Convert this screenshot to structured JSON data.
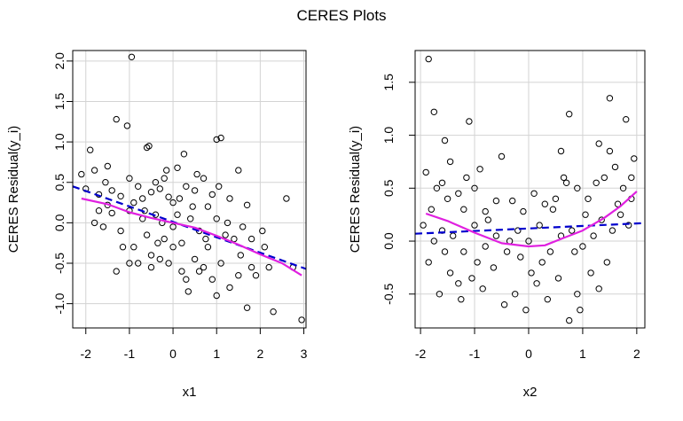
{
  "figure": {
    "title": "CERES Plots"
  },
  "colors": {
    "points": "#000000",
    "grid": "#d3d3d3",
    "linear_fit": "#0000cd",
    "smooth_fit": "#e020e0"
  },
  "chart_data": [
    {
      "type": "scatter",
      "xlabel": "x1",
      "ylabel": "CERES Residual(y_i)",
      "xlim": [
        -2.3,
        3.05
      ],
      "ylim": [
        -1.3,
        2.13
      ],
      "xticks": [
        -2,
        -1,
        0,
        1,
        2,
        3
      ],
      "xtick_labels": [
        "-2",
        "-1",
        "0",
        "1",
        "2",
        "3"
      ],
      "yticks": [
        -1.0,
        -0.5,
        0.0,
        0.5,
        1.0,
        1.5,
        2.0
      ],
      "ytick_labels": [
        "-1.0",
        "-0.5",
        "0.0",
        "0.5",
        "1.0",
        "1.5",
        "2.0"
      ],
      "grid": true,
      "points": [
        [
          -2.1,
          0.6
        ],
        [
          -1.9,
          0.9
        ],
        [
          -1.8,
          0.65
        ],
        [
          -1.5,
          0.7
        ],
        [
          -1.3,
          1.28
        ],
        [
          -1.05,
          1.2
        ],
        [
          -0.95,
          2.05
        ],
        [
          -0.6,
          0.93
        ],
        [
          -0.55,
          0.95
        ],
        [
          0.1,
          0.68
        ],
        [
          0.25,
          0.85
        ],
        [
          1.0,
          1.03
        ],
        [
          1.1,
          1.05
        ],
        [
          1.5,
          0.65
        ],
        [
          2.6,
          0.3
        ],
        [
          -2.0,
          0.42
        ],
        [
          -1.7,
          0.35
        ],
        [
          -1.5,
          0.22
        ],
        [
          -1.4,
          0.4
        ],
        [
          -1.2,
          0.33
        ],
        [
          -1.0,
          0.55
        ],
        [
          -0.8,
          0.45
        ],
        [
          -0.7,
          0.3
        ],
        [
          -0.5,
          0.38
        ],
        [
          -0.4,
          0.5
        ],
        [
          -0.3,
          0.42
        ],
        [
          -0.2,
          0.55
        ],
        [
          -0.1,
          0.32
        ],
        [
          0.0,
          0.25
        ],
        [
          0.3,
          0.45
        ],
        [
          0.5,
          0.4
        ],
        [
          0.7,
          0.55
        ],
        [
          0.8,
          0.2
        ],
        [
          1.3,
          0.3
        ],
        [
          1.7,
          0.22
        ],
        [
          -1.8,
          0.0
        ],
        [
          -1.6,
          -0.05
        ],
        [
          -1.4,
          0.12
        ],
        [
          -1.2,
          -0.1
        ],
        [
          -1.0,
          0.15
        ],
        [
          -0.9,
          -0.3
        ],
        [
          -0.7,
          0.05
        ],
        [
          -0.6,
          -0.15
        ],
        [
          -0.4,
          0.1
        ],
        [
          -0.2,
          -0.2
        ],
        [
          0.0,
          -0.05
        ],
        [
          0.1,
          0.1
        ],
        [
          0.2,
          -0.25
        ],
        [
          0.4,
          0.05
        ],
        [
          0.6,
          -0.1
        ],
        [
          0.8,
          -0.3
        ],
        [
          1.0,
          0.05
        ],
        [
          1.2,
          -0.15
        ],
        [
          1.4,
          -0.2
        ],
        [
          1.6,
          -0.05
        ],
        [
          1.8,
          -0.2
        ],
        [
          2.1,
          -0.3
        ],
        [
          -1.3,
          -0.6
        ],
        [
          -1.0,
          -0.5
        ],
        [
          -0.8,
          -0.5
        ],
        [
          -0.5,
          -0.4
        ],
        [
          -0.3,
          -0.45
        ],
        [
          -0.1,
          -0.5
        ],
        [
          0.2,
          -0.6
        ],
        [
          0.3,
          -0.7
        ],
        [
          0.5,
          -0.45
        ],
        [
          0.7,
          -0.55
        ],
        [
          0.9,
          -0.7
        ],
        [
          1.1,
          -0.5
        ],
        [
          1.3,
          -0.8
        ],
        [
          1.5,
          -0.65
        ],
        [
          1.7,
          -1.05
        ],
        [
          1.8,
          -0.55
        ],
        [
          2.2,
          -0.55
        ],
        [
          2.3,
          -1.1
        ],
        [
          2.75,
          -0.55
        ],
        [
          2.95,
          -1.2
        ],
        [
          0.35,
          -0.85
        ],
        [
          0.6,
          -0.6
        ],
        [
          0.0,
          -0.3
        ],
        [
          -0.5,
          -0.55
        ],
        [
          1.0,
          -0.9
        ],
        [
          1.9,
          -0.65
        ],
        [
          -1.7,
          0.15
        ],
        [
          -0.9,
          0.25
        ],
        [
          0.9,
          0.35
        ],
        [
          1.25,
          0.0
        ],
        [
          0.45,
          0.2
        ],
        [
          -0.25,
          0.0
        ],
        [
          0.15,
          0.3
        ],
        [
          -1.55,
          0.5
        ],
        [
          -0.65,
          0.15
        ],
        [
          0.75,
          -0.2
        ],
        [
          1.55,
          -0.4
        ],
        [
          -0.15,
          0.65
        ],
        [
          0.55,
          0.6
        ],
        [
          -1.15,
          -0.3
        ],
        [
          2.05,
          -0.1
        ],
        [
          -0.35,
          -0.25
        ],
        [
          1.05,
          0.45
        ]
      ],
      "linear_fit": [
        [
          -2.3,
          0.45
        ],
        [
          3.05,
          -0.57
        ]
      ],
      "smooth_fit": [
        [
          -2.1,
          0.3
        ],
        [
          -1.5,
          0.23
        ],
        [
          -1.0,
          0.13
        ],
        [
          -0.5,
          0.06
        ],
        [
          0.0,
          0.0
        ],
        [
          0.5,
          -0.06
        ],
        [
          1.0,
          -0.16
        ],
        [
          1.5,
          -0.27
        ],
        [
          2.0,
          -0.39
        ],
        [
          2.5,
          -0.5
        ],
        [
          2.95,
          -0.65
        ]
      ]
    },
    {
      "type": "scatter",
      "xlabel": "x2",
      "ylabel": "CERES Residual(y_i)",
      "xlim": [
        -2.1,
        2.15
      ],
      "ylim": [
        -0.82,
        1.8
      ],
      "xticks": [
        -2,
        -1,
        0,
        1,
        2
      ],
      "xtick_labels": [
        "-2",
        "-1",
        "0",
        "1",
        "2"
      ],
      "yticks": [
        -0.5,
        0.0,
        0.5,
        1.0,
        1.5
      ],
      "ytick_labels": [
        "-0.5",
        "0.0",
        "0.5",
        "1.0",
        "1.5"
      ],
      "grid": true,
      "points": [
        [
          -1.85,
          1.72
        ],
        [
          -1.75,
          1.22
        ],
        [
          -1.55,
          0.95
        ],
        [
          -1.45,
          0.75
        ],
        [
          -1.1,
          1.13
        ],
        [
          -0.9,
          0.68
        ],
        [
          -0.5,
          0.8
        ],
        [
          0.6,
          0.85
        ],
        [
          0.75,
          1.2
        ],
        [
          1.3,
          0.92
        ],
        [
          1.5,
          1.35
        ],
        [
          1.8,
          1.15
        ],
        [
          1.95,
          0.78
        ],
        [
          -1.9,
          0.65
        ],
        [
          -1.7,
          0.5
        ],
        [
          -1.6,
          0.55
        ],
        [
          -1.5,
          0.4
        ],
        [
          -1.3,
          0.45
        ],
        [
          -1.2,
          0.3
        ],
        [
          -1.0,
          0.5
        ],
        [
          -0.8,
          0.28
        ],
        [
          -0.6,
          0.38
        ],
        [
          -0.3,
          0.38
        ],
        [
          -0.1,
          0.28
        ],
        [
          0.1,
          0.45
        ],
        [
          0.3,
          0.35
        ],
        [
          0.5,
          0.4
        ],
        [
          0.7,
          0.55
        ],
        [
          0.9,
          0.5
        ],
        [
          1.1,
          0.4
        ],
        [
          1.25,
          0.55
        ],
        [
          1.4,
          0.6
        ],
        [
          1.6,
          0.7
        ],
        [
          1.75,
          0.5
        ],
        [
          1.9,
          0.4
        ],
        [
          -1.95,
          0.15
        ],
        [
          -1.75,
          0.0
        ],
        [
          -1.6,
          0.1
        ],
        [
          -1.4,
          0.05
        ],
        [
          -1.2,
          -0.1
        ],
        [
          -1.0,
          0.15
        ],
        [
          -0.8,
          -0.05
        ],
        [
          -0.6,
          0.05
        ],
        [
          -0.4,
          -0.1
        ],
        [
          -0.2,
          0.1
        ],
        [
          0.0,
          0.0
        ],
        [
          0.2,
          0.15
        ],
        [
          0.4,
          -0.1
        ],
        [
          0.6,
          0.05
        ],
        [
          0.8,
          0.1
        ],
        [
          1.0,
          -0.05
        ],
        [
          1.2,
          0.05
        ],
        [
          1.35,
          0.2
        ],
        [
          1.55,
          0.1
        ],
        [
          1.7,
          0.25
        ],
        [
          1.85,
          0.15
        ],
        [
          -1.85,
          -0.2
        ],
        [
          -1.65,
          -0.5
        ],
        [
          -1.45,
          -0.3
        ],
        [
          -1.25,
          -0.55
        ],
        [
          -1.05,
          -0.35
        ],
        [
          -0.85,
          -0.45
        ],
        [
          -0.65,
          -0.25
        ],
        [
          -0.45,
          -0.6
        ],
        [
          -0.25,
          -0.5
        ],
        [
          -0.05,
          -0.65
        ],
        [
          0.15,
          -0.4
        ],
        [
          0.35,
          -0.55
        ],
        [
          0.55,
          -0.35
        ],
        [
          0.75,
          -0.75
        ],
        [
          0.95,
          -0.65
        ],
        [
          1.15,
          -0.3
        ],
        [
          1.3,
          -0.45
        ],
        [
          1.45,
          -0.2
        ],
        [
          -0.95,
          -0.2
        ],
        [
          0.05,
          -0.3
        ],
        [
          0.85,
          -0.1
        ],
        [
          -1.55,
          -0.1
        ],
        [
          1.65,
          0.35
        ],
        [
          -0.35,
          0.0
        ],
        [
          0.45,
          0.3
        ],
        [
          -1.15,
          0.6
        ],
        [
          1.05,
          0.25
        ],
        [
          -0.75,
          0.2
        ],
        [
          0.25,
          -0.2
        ],
        [
          1.5,
          0.85
        ],
        [
          -1.8,
          0.3
        ],
        [
          0.65,
          0.6
        ],
        [
          -0.15,
          -0.15
        ],
        [
          1.9,
          0.6
        ],
        [
          -1.3,
          -0.4
        ],
        [
          0.9,
          -0.5
        ]
      ],
      "linear_fit": [
        [
          -2.1,
          0.07
        ],
        [
          2.15,
          0.17
        ]
      ],
      "smooth_fit": [
        [
          -1.9,
          0.26
        ],
        [
          -1.5,
          0.19
        ],
        [
          -1.0,
          0.08
        ],
        [
          -0.5,
          -0.02
        ],
        [
          0.0,
          -0.05
        ],
        [
          0.3,
          -0.04
        ],
        [
          0.6,
          0.02
        ],
        [
          1.0,
          0.1
        ],
        [
          1.4,
          0.22
        ],
        [
          1.7,
          0.33
        ],
        [
          2.0,
          0.47
        ]
      ]
    }
  ]
}
